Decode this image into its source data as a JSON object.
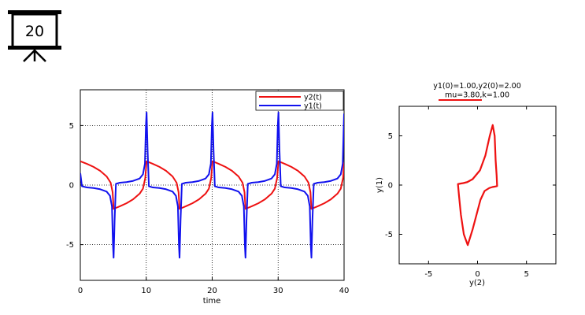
{
  "slide": {
    "number": "20"
  },
  "chart_data": [
    {
      "type": "line",
      "title": "",
      "xlabel": "time",
      "ylabel": "",
      "xlim": [
        0,
        40
      ],
      "ylim": [
        -8,
        8
      ],
      "xticks": [
        0,
        10,
        20,
        30,
        40
      ],
      "yticks": [
        -5,
        0,
        5
      ],
      "grid": true,
      "legend_position": "top-right",
      "series": [
        {
          "name": "y2(t)",
          "color": "#ee1111",
          "x": [
            0,
            1,
            2,
            3,
            4,
            4.6,
            4.9,
            5.05,
            6,
            7,
            8,
            9,
            9.5,
            9.85,
            10.05,
            11,
            12,
            13,
            14,
            14.6,
            14.9,
            15.05,
            16,
            17,
            18,
            19,
            19.5,
            19.85,
            20.05,
            21,
            22,
            23,
            24,
            24.6,
            24.9,
            25.05,
            26,
            27,
            28,
            29,
            29.5,
            29.85,
            30.05,
            31,
            32,
            33,
            34,
            34.6,
            34.9,
            35.05,
            36,
            37,
            38,
            39,
            39.5,
            39.85,
            40
          ],
          "values": [
            2.0,
            1.78,
            1.53,
            1.2,
            0.72,
            0.2,
            -0.6,
            -2.0,
            -1.78,
            -1.53,
            -1.2,
            -0.72,
            -0.3,
            0.6,
            2.0,
            1.78,
            1.53,
            1.2,
            0.72,
            0.2,
            -0.6,
            -2.0,
            -1.78,
            -1.53,
            -1.2,
            -0.72,
            -0.3,
            0.6,
            2.0,
            1.78,
            1.53,
            1.2,
            0.72,
            0.2,
            -0.6,
            -2.0,
            -1.78,
            -1.53,
            -1.2,
            -0.72,
            -0.3,
            0.6,
            2.0,
            1.78,
            1.53,
            1.2,
            0.72,
            0.2,
            -0.6,
            -2.0,
            -1.78,
            -1.53,
            -1.2,
            -0.72,
            -0.3,
            0.6,
            1.9
          ]
        },
        {
          "name": "y1(t)",
          "color": "#1111ee",
          "x": [
            0,
            0.25,
            1,
            2,
            3,
            4,
            4.5,
            4.8,
            4.95,
            5.05,
            5.2,
            5.4,
            6,
            7,
            8,
            9,
            9.5,
            9.8,
            9.95,
            10.05,
            10.2,
            10.4,
            11,
            12,
            13,
            14,
            14.5,
            14.8,
            14.95,
            15.05,
            15.2,
            15.4,
            16,
            17,
            18,
            19,
            19.5,
            19.8,
            19.95,
            20.05,
            20.2,
            20.4,
            21,
            22,
            23,
            24,
            24.5,
            24.8,
            24.95,
            25.05,
            25.2,
            25.4,
            26,
            27,
            28,
            29,
            29.5,
            29.8,
            29.95,
            30.05,
            30.2,
            30.4,
            31,
            32,
            33,
            34,
            34.5,
            34.8,
            34.95,
            35.05,
            35.2,
            35.4,
            36,
            37,
            38,
            39,
            39.5,
            39.8,
            39.95,
            40
          ],
          "values": [
            1.0,
            -0.1,
            -0.2,
            -0.25,
            -0.35,
            -0.55,
            -0.9,
            -1.8,
            -5.0,
            -6.1,
            -3.0,
            0.1,
            0.2,
            0.25,
            0.35,
            0.55,
            0.9,
            1.8,
            5.0,
            6.1,
            3.0,
            -0.1,
            -0.2,
            -0.25,
            -0.35,
            -0.55,
            -0.9,
            -1.8,
            -5.0,
            -6.1,
            -3.0,
            0.1,
            0.2,
            0.25,
            0.35,
            0.55,
            0.9,
            1.8,
            5.0,
            6.1,
            3.0,
            -0.1,
            -0.2,
            -0.25,
            -0.35,
            -0.55,
            -0.9,
            -1.8,
            -5.0,
            -6.1,
            -3.0,
            0.1,
            0.2,
            0.25,
            0.35,
            0.55,
            0.9,
            1.8,
            5.0,
            6.1,
            3.0,
            -0.1,
            -0.2,
            -0.25,
            -0.35,
            -0.55,
            -0.9,
            -1.8,
            -5.0,
            -6.1,
            -3.0,
            0.1,
            0.2,
            0.25,
            0.35,
            0.55,
            0.9,
            1.8,
            5.0,
            6.0
          ]
        }
      ]
    },
    {
      "type": "line",
      "title": "y1(0)=1.00,y2(0)=2.00",
      "subtitle": "mu=3.80,k=1.00",
      "xlabel": "y(2)",
      "ylabel": "y(1)",
      "xlim": [
        -8,
        8
      ],
      "ylim": [
        -8,
        8
      ],
      "xticks": [
        -5,
        0,
        5
      ],
      "yticks": [
        -5,
        0,
        5
      ],
      "grid": false,
      "series": [
        {
          "color": "#ee1111",
          "x": [
            -2.0,
            -1.75,
            -1.45,
            -1.05,
            -0.5,
            0.25,
            0.8,
            1.25,
            1.55,
            1.75,
            1.85,
            1.95,
            2.0,
            1.8,
            1.52,
            1.2,
            0.72,
            0.3,
            -0.5,
            -1.0,
            -1.4,
            -1.7,
            -1.9,
            -2.0
          ],
          "y": [
            0.1,
            0.15,
            0.2,
            0.3,
            0.6,
            1.5,
            3.0,
            5.0,
            6.1,
            5.0,
            2.5,
            1.0,
            -0.1,
            -0.15,
            -0.2,
            -0.3,
            -0.6,
            -1.5,
            -4.5,
            -6.1,
            -5.0,
            -3.0,
            -1.0,
            0.1
          ]
        }
      ]
    }
  ]
}
